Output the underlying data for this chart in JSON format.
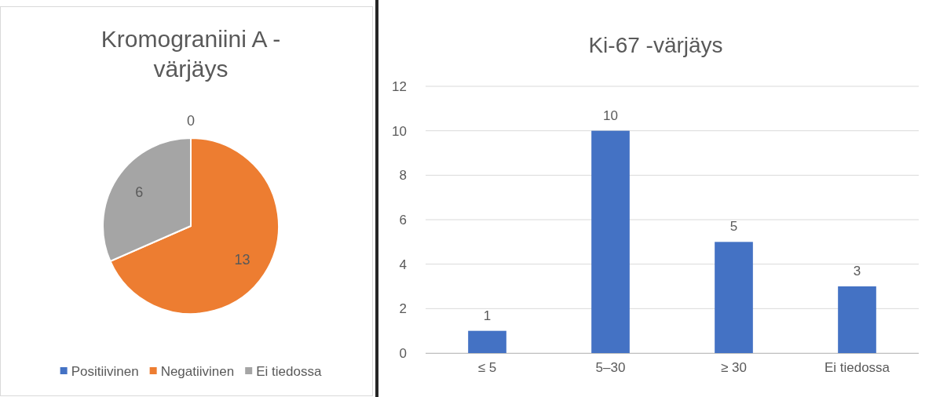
{
  "chart_data": [
    {
      "type": "pie",
      "title": "Kromograniini A - värjäys",
      "categories": [
        "Positiivinen",
        "Negatiivinen",
        "Ei tiedossa"
      ],
      "values": [
        0,
        13,
        6
      ],
      "colors": [
        "#4472c4",
        "#ed7d31",
        "#a5a5a5"
      ],
      "value_labels": [
        "0",
        "13",
        "6"
      ],
      "legend": "bottom"
    },
    {
      "type": "bar",
      "title": "Ki-67 -värjäys",
      "categories": [
        "≤ 5",
        "5–30",
        "≥ 30",
        "Ei tiedossa"
      ],
      "values": [
        1,
        10,
        5,
        3
      ],
      "color": "#4472c4",
      "ylim": [
        0,
        12
      ],
      "yticks": [
        0,
        2,
        4,
        6,
        8,
        10,
        12
      ],
      "grid": "y",
      "data_labels": true
    }
  ]
}
